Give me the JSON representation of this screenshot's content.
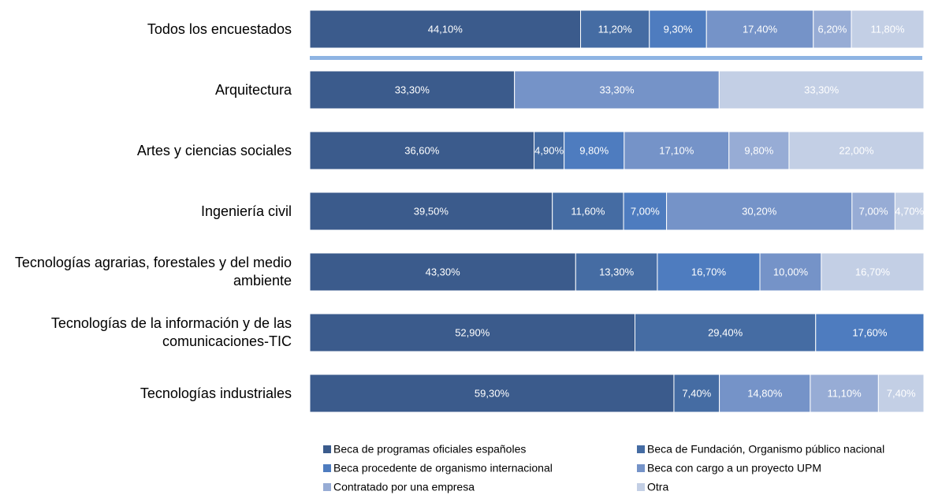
{
  "chart_data": {
    "type": "stacked-bar-horizontal",
    "categories": [
      "Todos los encuestados",
      "Arquitectura",
      "Artes y ciencias sociales",
      "Ingeniería civil",
      "Tecnologías agrarias, forestales y del medio ambiente",
      "Tecnologías de la información y de las comunicaciones-TIC",
      "Tecnologías industriales"
    ],
    "series": [
      {
        "name": "Beca de programas oficiales españoles",
        "color": "#3b5b8c",
        "values": [
          44.1,
          33.3,
          36.6,
          39.5,
          43.3,
          52.9,
          59.3
        ],
        "value_labels": [
          "44,10%",
          "33,30%",
          "36,60%",
          "39,50%",
          "43,30%",
          "52,90%",
          "59,30%"
        ]
      },
      {
        "name": "Beca de Fundación, Organismo público nacional",
        "color": "#456ca3",
        "values": [
          11.2,
          null,
          4.9,
          11.6,
          13.3,
          29.4,
          7.4
        ],
        "value_labels": [
          "11,20%",
          null,
          "4,90%",
          "11,60%",
          "13,30%",
          "29,40%",
          "7,40%"
        ]
      },
      {
        "name": "Beca procedente de organismo internacional",
        "color": "#4e7cbf",
        "values": [
          9.3,
          null,
          9.8,
          7.0,
          16.7,
          17.6,
          null
        ],
        "value_labels": [
          "9,30%",
          null,
          "9,80%",
          "7,00%",
          "16,70%",
          "17,60%",
          null
        ]
      },
      {
        "name": "Beca con cargo a un proyecto UPM",
        "color": "#7593c8",
        "values": [
          17.4,
          33.3,
          17.1,
          30.2,
          10.0,
          null,
          14.8
        ],
        "value_labels": [
          "17,40%",
          "33,30%",
          "17,10%",
          "30,20%",
          "10,00%",
          null,
          "14,80%"
        ]
      },
      {
        "name": "Contratado por una empresa",
        "color": "#97acd5",
        "values": [
          6.2,
          null,
          9.8,
          7.0,
          null,
          null,
          11.1
        ],
        "value_labels": [
          "6,20%",
          null,
          "9,80%",
          "7,00%",
          null,
          null,
          "11,10%"
        ]
      },
      {
        "name": "Otra",
        "color": "#c3cfe5",
        "values": [
          11.8,
          33.3,
          22.0,
          4.7,
          16.7,
          null,
          7.4
        ],
        "value_labels": [
          "11,80%",
          "33,30%",
          "22,00%",
          "4,70%",
          "16,70%",
          null,
          "7,40%"
        ]
      }
    ]
  }
}
